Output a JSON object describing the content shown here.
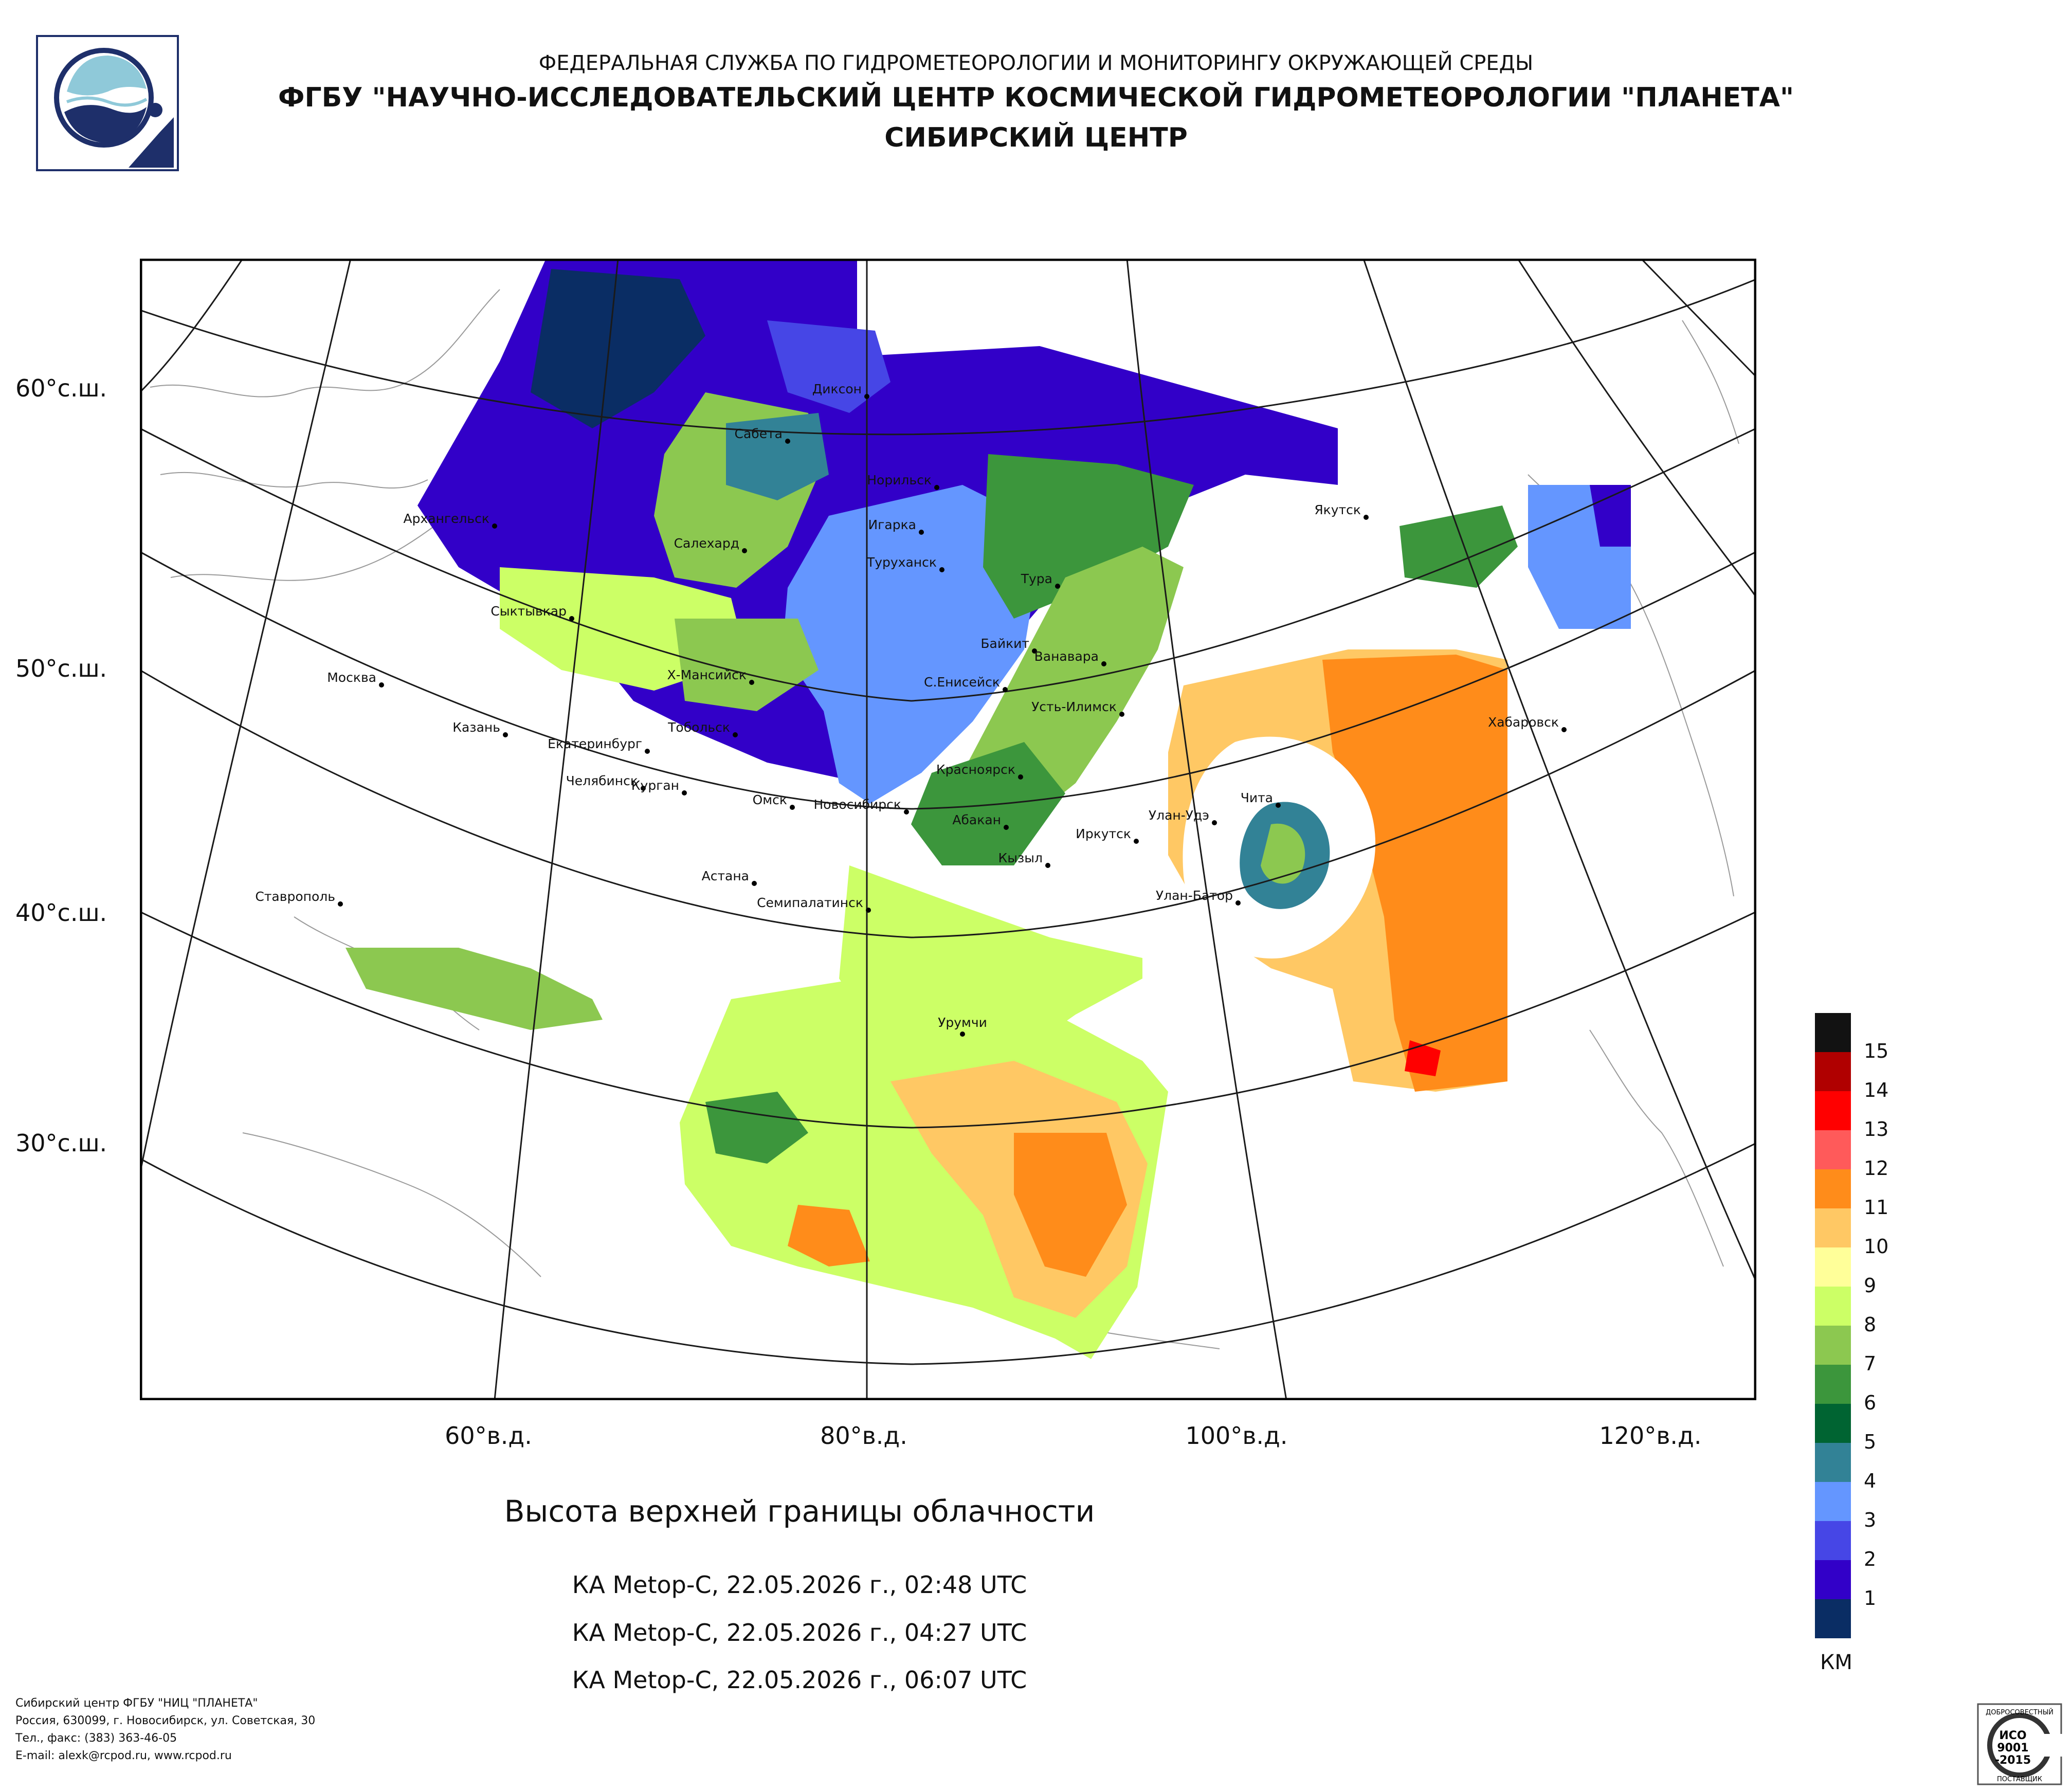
{
  "header": {
    "line1": "ФЕДЕРАЛЬНАЯ СЛУЖБА ПО ГИДРОМЕТЕОРОЛОГИИ И МОНИТОРИНГУ ОКРУЖАЮЩЕЙ СРЕДЫ",
    "line2": "ФГБУ \"НАУЧНО-ИССЛЕДОВАТЕЛЬСКИЙ ЦЕНТР КОСМИЧЕСКОЙ ГИДРОМЕТЕОРОЛОГИИ \"ПЛАНЕТА\"",
    "line3": "СИБИРСКИЙ ЦЕНТР"
  },
  "map": {
    "latitude_labels": [
      "60°с.ш.",
      "50°с.ш.",
      "40°с.ш.",
      "30°с.ш."
    ],
    "longitude_labels": [
      "60°в.д.",
      "80°в.д.",
      "100°в.д.",
      "120°в.д."
    ],
    "cities": [
      {
        "name": "Диксон"
      },
      {
        "name": "Сабета"
      },
      {
        "name": "Норильск"
      },
      {
        "name": "Игарка"
      },
      {
        "name": "Туруханск"
      },
      {
        "name": "Тура"
      },
      {
        "name": "Якутск"
      },
      {
        "name": "Архангельск"
      },
      {
        "name": "Салехард"
      },
      {
        "name": "Сыктывкар"
      },
      {
        "name": "Байкит"
      },
      {
        "name": "Ванавара"
      },
      {
        "name": "Москва"
      },
      {
        "name": "Х-Мансийск"
      },
      {
        "name": "С.Енисейск"
      },
      {
        "name": "Усть-Илимск"
      },
      {
        "name": "Хабаровск"
      },
      {
        "name": "Казань"
      },
      {
        "name": "Тобольск"
      },
      {
        "name": "Екатеринбург"
      },
      {
        "name": "Челябинск"
      },
      {
        "name": "Курган"
      },
      {
        "name": "Красноярск"
      },
      {
        "name": "Омск"
      },
      {
        "name": "Чита"
      },
      {
        "name": "Новосибирск"
      },
      {
        "name": "Абакан"
      },
      {
        "name": "Улан-Удэ"
      },
      {
        "name": "Иркутск"
      },
      {
        "name": "Кызыл"
      },
      {
        "name": "Астана"
      },
      {
        "name": "Ставрополь"
      },
      {
        "name": "Улан-Батор"
      },
      {
        "name": "Семипалатинск"
      },
      {
        "name": "Урумчи"
      }
    ]
  },
  "product": {
    "title": "Высота верхней границы облачности",
    "passes": [
      "КА Metop-C, 22.05.2026 г., 02:48 UTC",
      "КА Metop-C, 22.05.2026 г., 04:27 UTC",
      "КА Metop-C, 22.05.2026 г., 06:07 UTC"
    ]
  },
  "legend": {
    "unit": "КМ",
    "levels": [
      {
        "value": "15",
        "color": "#121212"
      },
      {
        "value": "14",
        "color": "#b00000"
      },
      {
        "value": "13",
        "color": "#ff0000"
      },
      {
        "value": "12",
        "color": "#ff5a5a"
      },
      {
        "value": "11",
        "color": "#ff8c1a"
      },
      {
        "value": "10",
        "color": "#ffc864"
      },
      {
        "value": "9",
        "color": "#ffff99"
      },
      {
        "value": "8",
        "color": "#ccff66"
      },
      {
        "value": "7",
        "color": "#8cc850"
      },
      {
        "value": "6",
        "color": "#3c963c"
      },
      {
        "value": "5",
        "color": "#006432"
      },
      {
        "value": "4",
        "color": "#328296"
      },
      {
        "value": "3",
        "color": "#6496ff"
      },
      {
        "value": "2",
        "color": "#4646e6"
      },
      {
        "value": "1",
        "color": "#3200c8"
      },
      {
        "value": "",
        "color": "#0a2d64"
      }
    ]
  },
  "footer": {
    "line1": "Сибирский центр ФГБУ \"НИЦ \"ПЛАНЕТА\"",
    "line2": "Россия, 630099, г. Новосибирск, ул. Советская, 30",
    "line3": "Тел., факс: (383) 363-46-05",
    "line4": "E-mail: alexk@rcpod.ru, www.rcpod.ru"
  },
  "certificate": {
    "top": "ДОБРОСОВЕСТНЫЙ",
    "iso": "ИСО",
    "num": "9001",
    "year": "-2015",
    "bottom": "ПОСТАВЩИК"
  }
}
